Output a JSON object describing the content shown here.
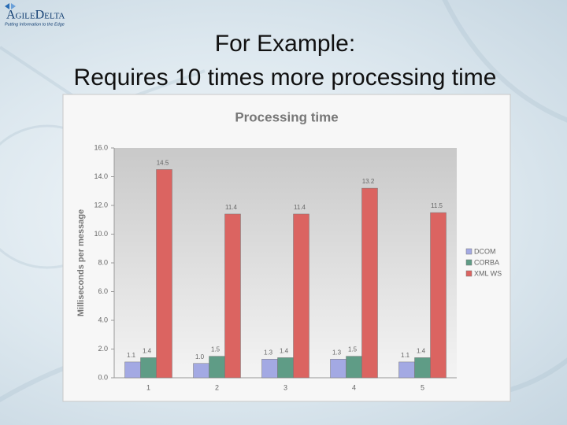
{
  "logo": {
    "name": "AgileDelta",
    "tagline": "Putting Information to the Edge"
  },
  "slide": {
    "title": "For Example:",
    "subtitle": "Requires 10 times more processing time"
  },
  "chart_data": {
    "type": "bar",
    "title": "Processing time",
    "y_label": "Milliseconds per message",
    "categories": [
      "1",
      "2",
      "3",
      "4",
      "5"
    ],
    "series": [
      {
        "name": "DCOM",
        "color": "#a3a9e3",
        "values": [
          1.1,
          1.0,
          1.3,
          1.3,
          1.1
        ],
        "value_labels": [
          "1.1",
          "1.0",
          "1.3",
          "1.3",
          "1.1"
        ]
      },
      {
        "name": "CORBA",
        "color": "#5f9c86",
        "values": [
          1.4,
          1.5,
          1.4,
          1.5,
          1.4
        ],
        "value_labels": [
          "1.4",
          "1.5",
          "1.4",
          "1.5",
          "1.4"
        ]
      },
      {
        "name": "XML WS",
        "color": "#db6461",
        "values": [
          14.5,
          11.4,
          11.4,
          13.2,
          11.5
        ],
        "value_labels": [
          "14.5",
          "11.4",
          "11.4",
          "13.2",
          "11.5"
        ]
      }
    ],
    "ylim": [
      0,
      16
    ],
    "yticks": [
      {
        "value": 0,
        "label": "0.0"
      },
      {
        "value": 2,
        "label": "2.0"
      },
      {
        "value": 4,
        "label": "4.0"
      },
      {
        "value": 6,
        "label": "6.0"
      },
      {
        "value": 8,
        "label": "8.0"
      },
      {
        "value": 10,
        "label": "10.0"
      },
      {
        "value": 12,
        "label": "12.0"
      },
      {
        "value": 14,
        "label": "14.0"
      },
      {
        "value": 16,
        "label": "16.0"
      }
    ],
    "grid": false,
    "legend": "right"
  }
}
